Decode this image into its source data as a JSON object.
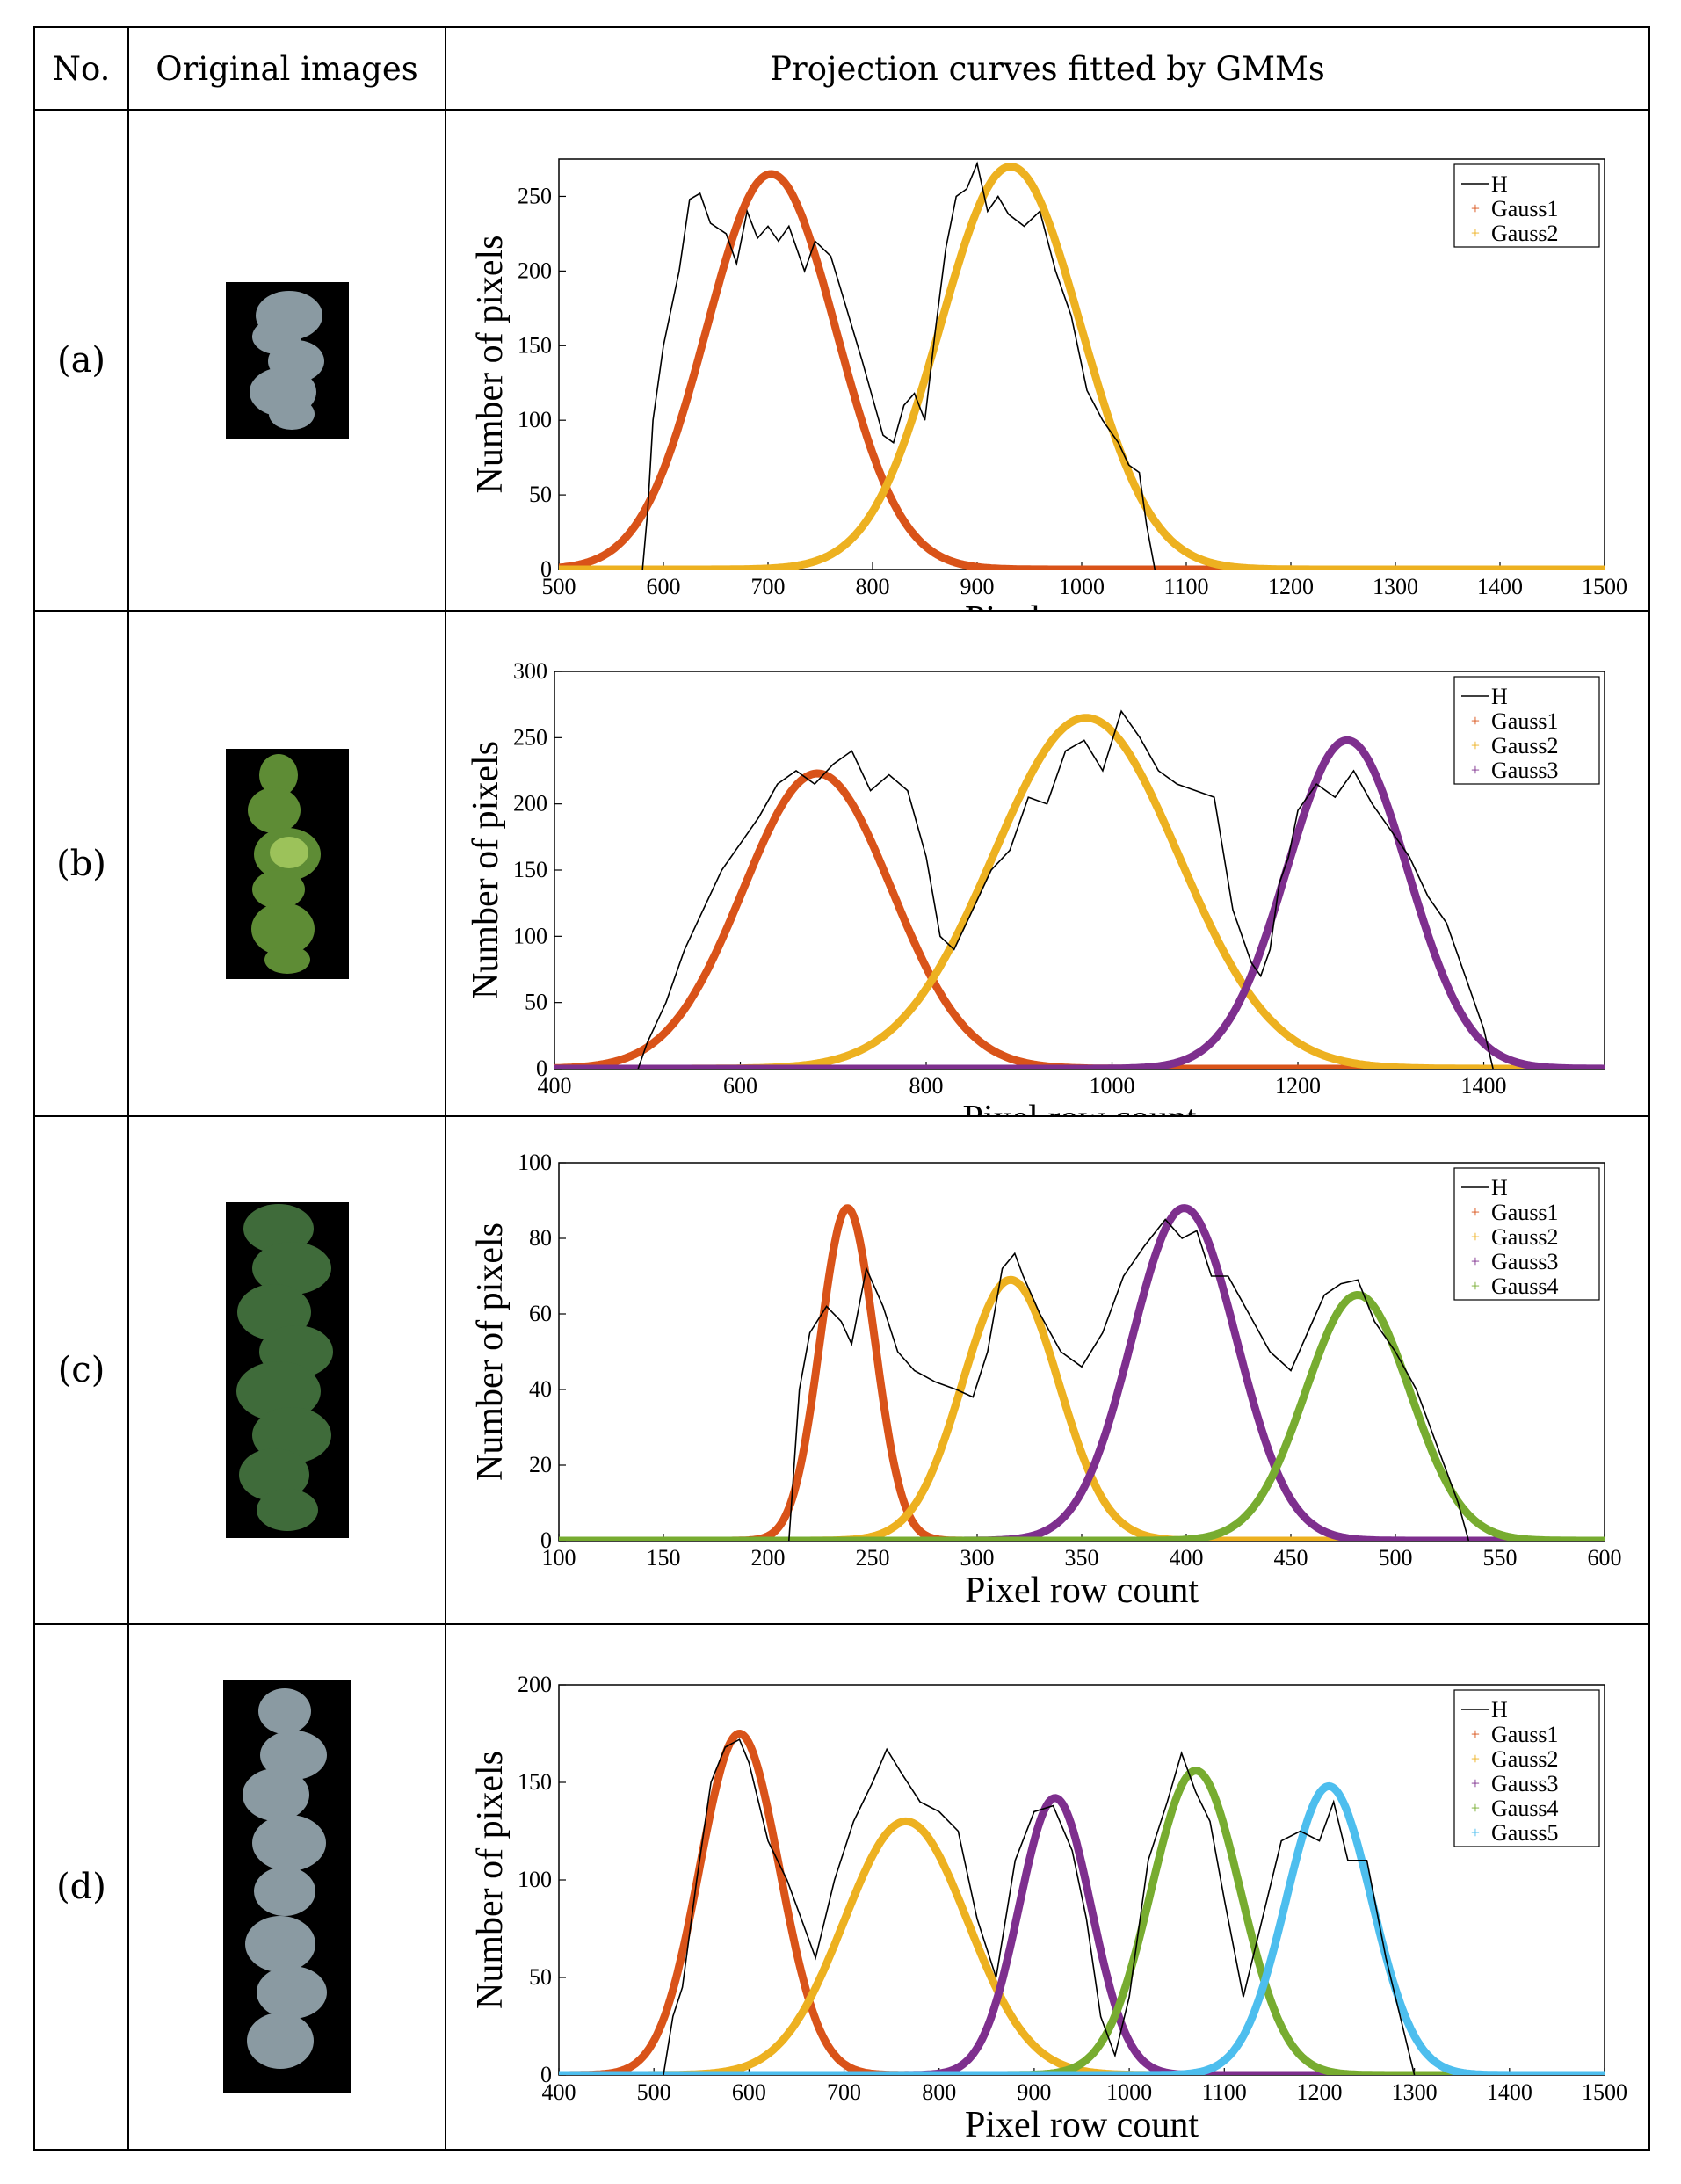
{
  "header": {
    "no": "No.",
    "original": "Original images",
    "projection": "Projection curves fitted by GMMs"
  },
  "colors": {
    "H": "#000000",
    "Gauss1": "#d95319",
    "Gauss2": "#edb120",
    "Gauss3": "#7e2f8e",
    "Gauss4": "#77ac30",
    "Gauss5": "#4dbeee"
  },
  "rows": [
    {
      "label": "(a)",
      "thumb_desc": "plant-canopy-gray",
      "thumb_color": "#8a9aa2"
    },
    {
      "label": "(b)",
      "thumb_desc": "plant-canopy-green",
      "thumb_color": "#6a9a3a"
    },
    {
      "label": "(c)",
      "thumb_desc": "plant-canopy-darkgreen",
      "thumb_color": "#3f6b3a"
    },
    {
      "label": "(d)",
      "thumb_desc": "plant-canopy-gray",
      "thumb_color": "#8a9aa2"
    }
  ],
  "chart_data": [
    {
      "type": "line",
      "title": "",
      "xlabel": "Pixel row count",
      "ylabel": "Number of pixels",
      "xlim": [
        500,
        1500
      ],
      "ylim": [
        0,
        275
      ],
      "xticks": [
        500,
        600,
        700,
        800,
        900,
        1000,
        1100,
        1200,
        1300,
        1400,
        1500
      ],
      "yticks": [
        0,
        50,
        100,
        150,
        200,
        250
      ],
      "legend": [
        "H",
        "Gauss1",
        "Gauss2"
      ],
      "legend_position": "top-right",
      "gaussians": [
        {
          "name": "Gauss1",
          "mu": 703,
          "sigma": 62,
          "amp": 265
        },
        {
          "name": "Gauss2",
          "mu": 932,
          "sigma": 67,
          "amp": 270
        }
      ],
      "H": {
        "x": [
          580,
          585,
          590,
          600,
          615,
          625,
          635,
          645,
          660,
          670,
          680,
          690,
          700,
          710,
          720,
          735,
          745,
          760,
          775,
          790,
          800,
          810,
          820,
          830,
          840,
          850,
          860,
          870,
          880,
          890,
          900,
          910,
          920,
          930,
          945,
          960,
          975,
          990,
          1005,
          1020,
          1035,
          1045,
          1055,
          1062,
          1070
        ],
        "y": [
          0,
          40,
          100,
          150,
          200,
          248,
          252,
          232,
          225,
          205,
          240,
          222,
          230,
          220,
          230,
          200,
          220,
          210,
          175,
          140,
          115,
          90,
          85,
          110,
          118,
          100,
          160,
          215,
          250,
          255,
          272,
          240,
          250,
          238,
          230,
          240,
          200,
          170,
          120,
          100,
          85,
          70,
          65,
          30,
          0
        ]
      }
    },
    {
      "type": "line",
      "title": "",
      "xlabel": "Pixel row count",
      "ylabel": "Number of pixels",
      "xlim": [
        400,
        1530
      ],
      "ylim": [
        0,
        300
      ],
      "xticks": [
        400,
        600,
        800,
        1000,
        1200,
        1400
      ],
      "yticks": [
        0,
        50,
        100,
        150,
        200,
        250,
        300
      ],
      "legend": [
        "H",
        "Gauss1",
        "Gauss2",
        "Gauss3"
      ],
      "legend_position": "top-right",
      "gaussians": [
        {
          "name": "Gauss1",
          "mu": 683,
          "sigma": 80,
          "amp": 223
        },
        {
          "name": "Gauss2",
          "mu": 972,
          "sigma": 100,
          "amp": 265
        },
        {
          "name": "Gauss3",
          "mu": 1253,
          "sigma": 65,
          "amp": 248
        }
      ],
      "H": {
        "x": [
          490,
          500,
          520,
          540,
          560,
          580,
          600,
          620,
          640,
          660,
          680,
          700,
          720,
          740,
          760,
          780,
          800,
          815,
          830,
          850,
          870,
          890,
          910,
          930,
          950,
          970,
          990,
          1010,
          1030,
          1050,
          1070,
          1090,
          1110,
          1130,
          1150,
          1160,
          1170,
          1180,
          1190,
          1200,
          1220,
          1240,
          1260,
          1280,
          1300,
          1320,
          1340,
          1360,
          1380,
          1400,
          1410
        ],
        "y": [
          0,
          20,
          50,
          90,
          120,
          150,
          170,
          190,
          215,
          225,
          215,
          230,
          240,
          210,
          222,
          210,
          160,
          100,
          90,
          120,
          150,
          165,
          205,
          200,
          240,
          248,
          225,
          270,
          250,
          225,
          215,
          210,
          205,
          120,
          80,
          70,
          90,
          140,
          160,
          195,
          215,
          205,
          225,
          200,
          180,
          160,
          130,
          110,
          70,
          30,
          0
        ]
      }
    },
    {
      "type": "line",
      "title": "",
      "xlabel": "Pixel row count",
      "ylabel": "Number of pixels",
      "xlim": [
        100,
        600
      ],
      "ylim": [
        0,
        100
      ],
      "xticks": [
        100,
        150,
        200,
        250,
        300,
        350,
        400,
        450,
        500,
        550,
        600
      ],
      "yticks": [
        0,
        20,
        40,
        60,
        80,
        100
      ],
      "legend": [
        "H",
        "Gauss1",
        "Gauss2",
        "Gauss3",
        "Gauss4"
      ],
      "legend_position": "top-right",
      "gaussians": [
        {
          "name": "Gauss1",
          "mu": 238,
          "sigma": 13,
          "amp": 88
        },
        {
          "name": "Gauss2",
          "mu": 316,
          "sigma": 23,
          "amp": 69
        },
        {
          "name": "Gauss3",
          "mu": 399,
          "sigma": 25,
          "amp": 88
        },
        {
          "name": "Gauss4",
          "mu": 482,
          "sigma": 25,
          "amp": 65
        }
      ],
      "H": {
        "x": [
          210,
          215,
          220,
          228,
          235,
          240,
          247,
          255,
          262,
          270,
          280,
          290,
          298,
          305,
          312,
          318,
          322,
          330,
          340,
          350,
          360,
          370,
          380,
          390,
          398,
          405,
          412,
          420,
          430,
          440,
          450,
          458,
          466,
          474,
          482,
          490,
          500,
          510,
          520,
          530,
          535
        ],
        "y": [
          0,
          40,
          55,
          62,
          58,
          52,
          72,
          62,
          50,
          45,
          42,
          40,
          38,
          50,
          72,
          76,
          70,
          60,
          50,
          46,
          55,
          70,
          78,
          85,
          80,
          82,
          70,
          70,
          60,
          50,
          45,
          55,
          65,
          68,
          69,
          58,
          50,
          40,
          25,
          10,
          0
        ]
      }
    },
    {
      "type": "line",
      "title": "",
      "xlabel": "Pixel row count",
      "ylabel": "Number of pixels",
      "xlim": [
        400,
        1500
      ],
      "ylim": [
        0,
        200
      ],
      "xticks": [
        400,
        500,
        600,
        700,
        800,
        900,
        1000,
        1100,
        1200,
        1300,
        1400,
        1500
      ],
      "yticks": [
        0,
        50,
        100,
        150,
        200
      ],
      "legend": [
        "H",
        "Gauss1",
        "Gauss2",
        "Gauss3",
        "Gauss4",
        "Gauss5"
      ],
      "legend_position": "top-right",
      "gaussians": [
        {
          "name": "Gauss1",
          "mu": 590,
          "sigma": 42,
          "amp": 175
        },
        {
          "name": "Gauss2",
          "mu": 765,
          "sigma": 65,
          "amp": 130
        },
        {
          "name": "Gauss3",
          "mu": 922,
          "sigma": 38,
          "amp": 142
        },
        {
          "name": "Gauss4",
          "mu": 1070,
          "sigma": 47,
          "amp": 156
        },
        {
          "name": "Gauss5",
          "mu": 1210,
          "sigma": 45,
          "amp": 148
        }
      ],
      "H": {
        "x": [
          510,
          520,
          530,
          545,
          560,
          575,
          590,
          600,
          620,
          640,
          655,
          670,
          690,
          710,
          730,
          745,
          760,
          780,
          800,
          820,
          840,
          860,
          880,
          900,
          920,
          940,
          955,
          970,
          985,
          1000,
          1020,
          1040,
          1055,
          1070,
          1085,
          1100,
          1120,
          1140,
          1160,
          1180,
          1200,
          1215,
          1230,
          1250,
          1270,
          1290,
          1300
        ],
        "y": [
          0,
          30,
          45,
          100,
          150,
          168,
          172,
          160,
          120,
          100,
          80,
          60,
          100,
          130,
          150,
          167,
          155,
          140,
          135,
          125,
          80,
          50,
          110,
          135,
          138,
          115,
          80,
          30,
          10,
          40,
          110,
          140,
          165,
          145,
          130,
          90,
          40,
          80,
          120,
          125,
          120,
          140,
          110,
          110,
          60,
          20,
          0
        ]
      }
    }
  ]
}
